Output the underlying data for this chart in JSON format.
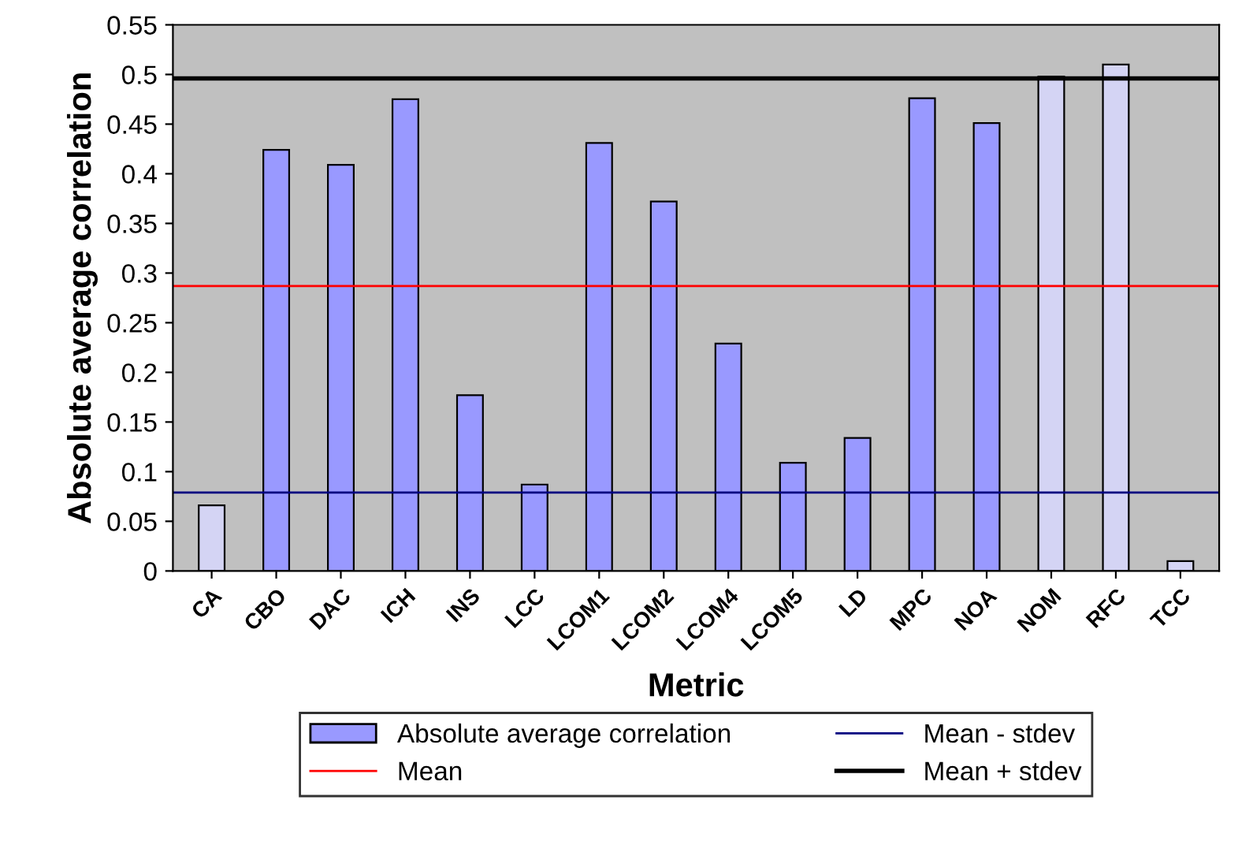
{
  "chart_data": {
    "type": "bar",
    "xlabel": "Metric",
    "ylabel": "Absolute average correlation",
    "categories": [
      "CA",
      "CBO",
      "DAC",
      "ICH",
      "INS",
      "LCC",
      "LCOM1",
      "LCOM2",
      "LCOM4",
      "LCOM5",
      "LD",
      "MPC",
      "NOA",
      "NOM",
      "RFC",
      "TCC"
    ],
    "series": [
      {
        "name": "Absolute average correlation",
        "color": "#9999ff",
        "colors": [
          "#d4d4f4",
          "#9999ff",
          "#9999ff",
          "#9999ff",
          "#9999ff",
          "#9999ff",
          "#9999ff",
          "#9999ff",
          "#9999ff",
          "#9999ff",
          "#9999ff",
          "#9999ff",
          "#9999ff",
          "#d4d4f4",
          "#d4d4f4",
          "#d4d4f4"
        ],
        "values": [
          0.066,
          0.424,
          0.409,
          0.475,
          0.177,
          0.087,
          0.431,
          0.372,
          0.229,
          0.109,
          0.134,
          0.476,
          0.451,
          0.498,
          0.51,
          0.01
        ]
      }
    ],
    "ylim": [
      0,
      0.55
    ],
    "yticks": [
      0,
      0.05,
      0.1,
      0.15,
      0.2,
      0.25,
      0.3,
      0.35,
      0.4,
      0.45,
      0.5,
      0.55
    ],
    "ref_lines": [
      {
        "axis": "y",
        "value": 0.287,
        "label": "Mean",
        "color": "#ff0000"
      },
      {
        "axis": "y",
        "value": 0.079,
        "label": "Mean - stdev",
        "color": "#000080"
      },
      {
        "axis": "y",
        "value": 0.496,
        "label": "Mean + stdev",
        "color": "#000000"
      }
    ],
    "grid": false,
    "legend": "bottom"
  }
}
